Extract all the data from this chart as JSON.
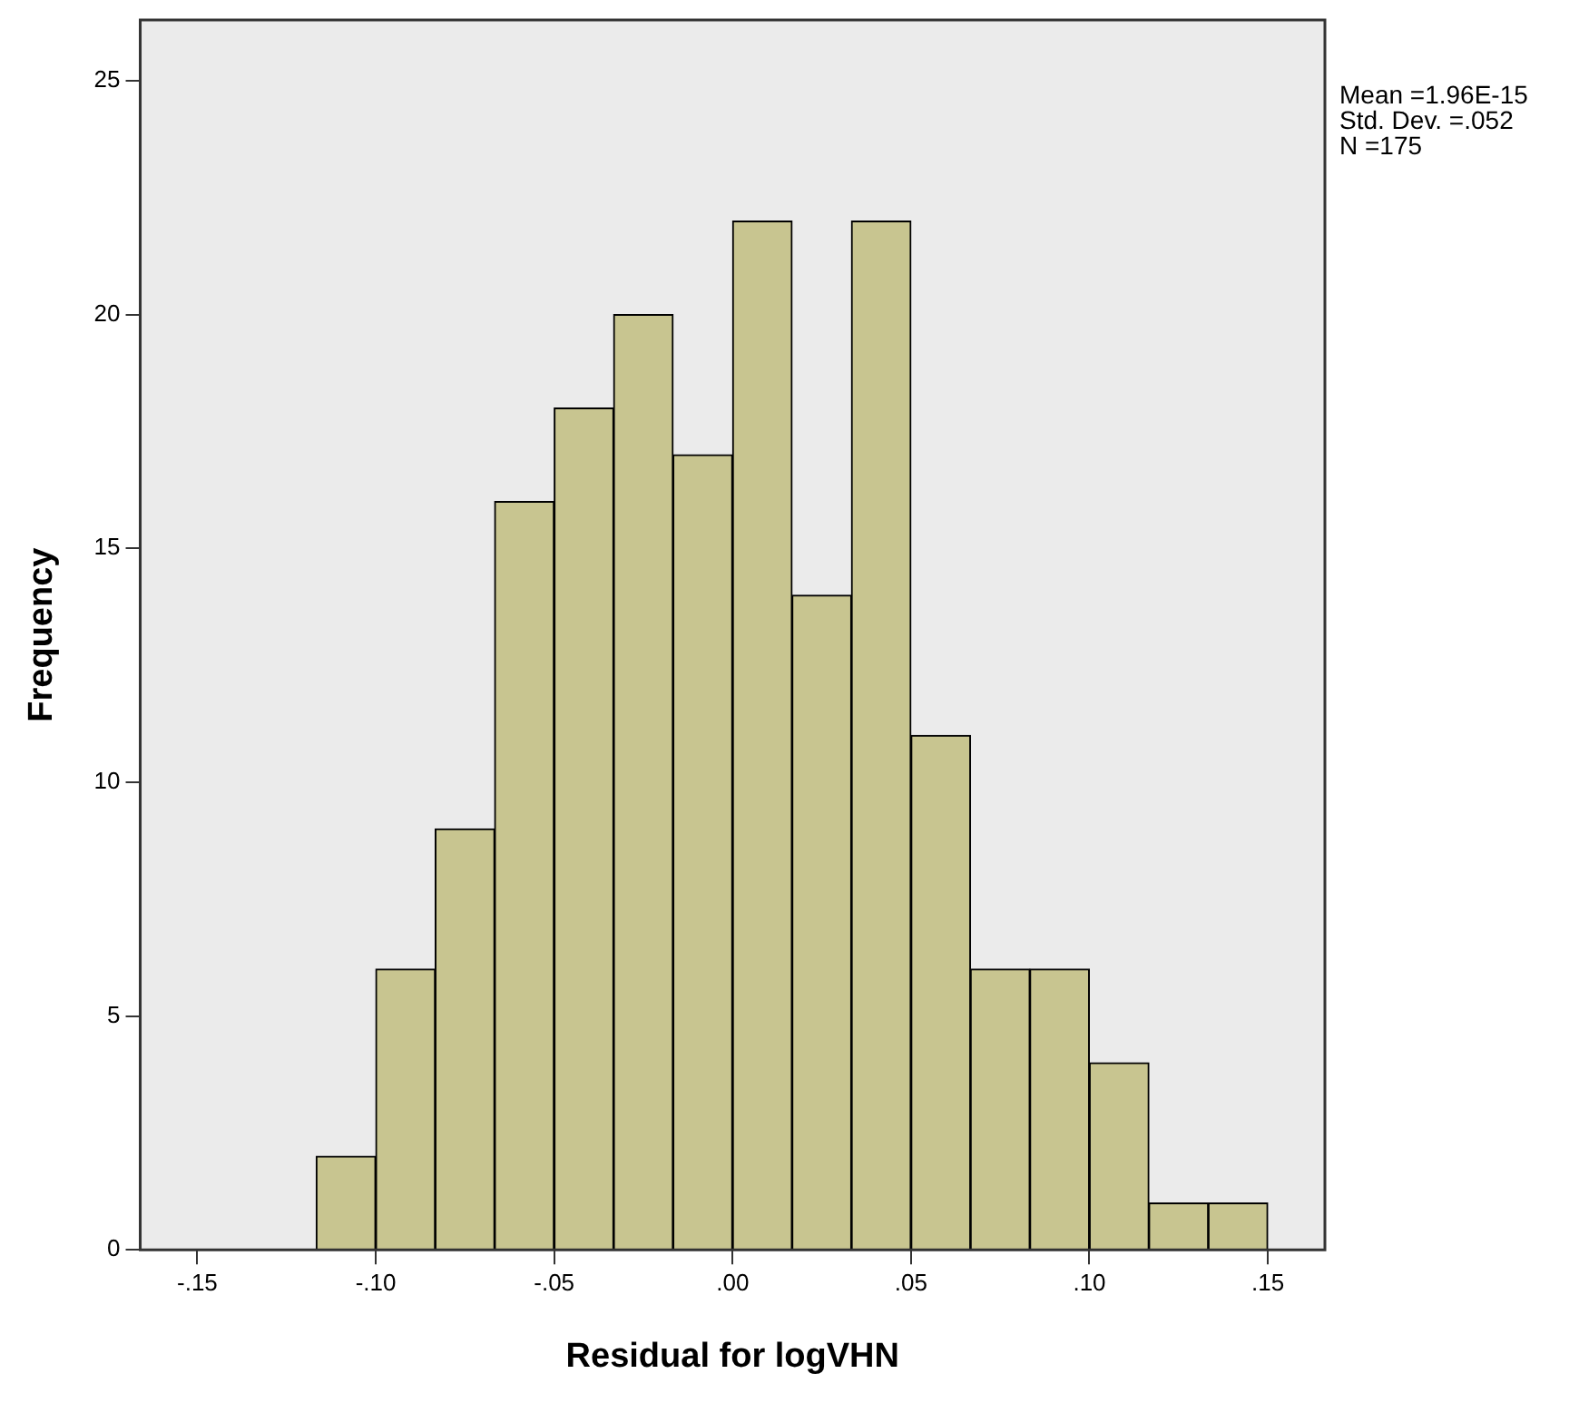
{
  "chart_data": {
    "type": "histogram",
    "xlabel": "Residual for logVHN",
    "ylabel": "Frequency",
    "bins": [
      -0.1167,
      -0.1,
      -0.0833,
      -0.0667,
      -0.05,
      -0.0333,
      -0.0167,
      0,
      0.0167,
      0.0333,
      0.05,
      0.0667,
      0.0833,
      0.1,
      0.1167,
      0.1333,
      0.15
    ],
    "values": [
      2,
      6,
      9,
      16,
      18,
      20,
      17,
      22,
      14,
      22,
      11,
      6,
      6,
      4,
      1,
      1
    ],
    "color": "#c8c590",
    "xlim": [
      -0.166,
      0.166
    ],
    "xticks": [
      {
        "value": -0.15,
        "label": "-.15"
      },
      {
        "value": -0.1,
        "label": "-.10"
      },
      {
        "value": -0.05,
        "label": "-.05"
      },
      {
        "value": 0,
        "label": ".00"
      },
      {
        "value": 0.05,
        "label": ".05"
      },
      {
        "value": 0.1,
        "label": ".10"
      },
      {
        "value": 0.15,
        "label": ".15"
      }
    ],
    "ylim": [
      0,
      26.3
    ],
    "yticks": [
      0,
      5,
      10,
      15,
      20,
      25
    ],
    "grid": false,
    "legend": false,
    "annotations": [
      "Mean =1.96E-15",
      "Std. Dev. =.052",
      "N =175"
    ]
  }
}
